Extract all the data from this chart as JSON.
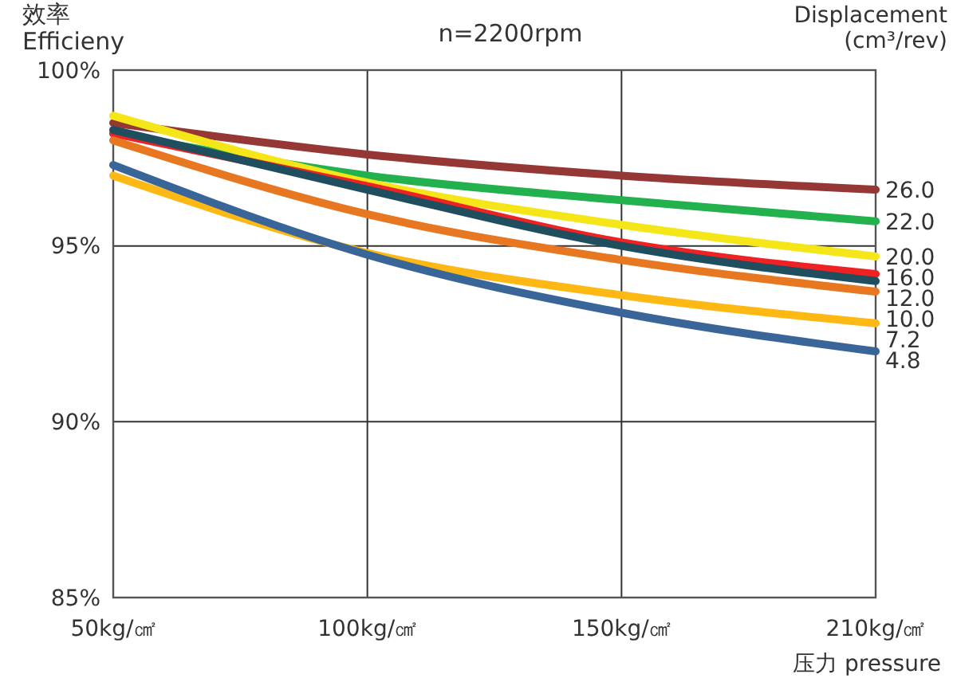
{
  "chart_data": {
    "type": "line",
    "title": "n=2200rpm",
    "ylabel": "效率\nEfficieny",
    "xlabel": "压力 pressure",
    "legend_title": "Displacement\n(cm³/rev)",
    "categories": [
      "50kg/㎠",
      "100kg/㎠",
      "150kg/㎠",
      "210kg/㎠"
    ],
    "ylim": [
      85,
      100
    ],
    "yticks": [
      {
        "value": 85,
        "label": "85%"
      },
      {
        "value": 90,
        "label": "90%"
      },
      {
        "value": 95,
        "label": "95%"
      },
      {
        "value": 100,
        "label": "100%"
      }
    ],
    "grid": true,
    "marker": "none",
    "line_style": "solid",
    "series": [
      {
        "name": "26.0",
        "color": "#953735",
        "values": [
          98.5,
          97.6,
          97.0,
          96.6
        ]
      },
      {
        "name": "22.0",
        "color": "#22b14c",
        "values": [
          98.2,
          97.0,
          96.3,
          95.7
        ]
      },
      {
        "name": "20.0",
        "color": "#f5e61a",
        "values": [
          98.7,
          96.8,
          95.6,
          94.7
        ]
      },
      {
        "name": "16.0",
        "color": "#ee2222",
        "values": [
          98.2,
          96.7,
          95.1,
          94.2
        ]
      },
      {
        "name": "12.0",
        "color": "#1f4e5f",
        "values": [
          98.3,
          96.6,
          95.0,
          94.0
        ]
      },
      {
        "name": "10.0",
        "color": "#e87722",
        "values": [
          98.0,
          95.9,
          94.6,
          93.7
        ]
      },
      {
        "name": "7.2",
        "color": "#fdb813",
        "values": [
          97.0,
          94.8,
          93.6,
          92.8
        ]
      },
      {
        "name": "4.8",
        "color": "#3a6598",
        "values": [
          97.3,
          94.75,
          93.1,
          92.0
        ]
      }
    ]
  }
}
